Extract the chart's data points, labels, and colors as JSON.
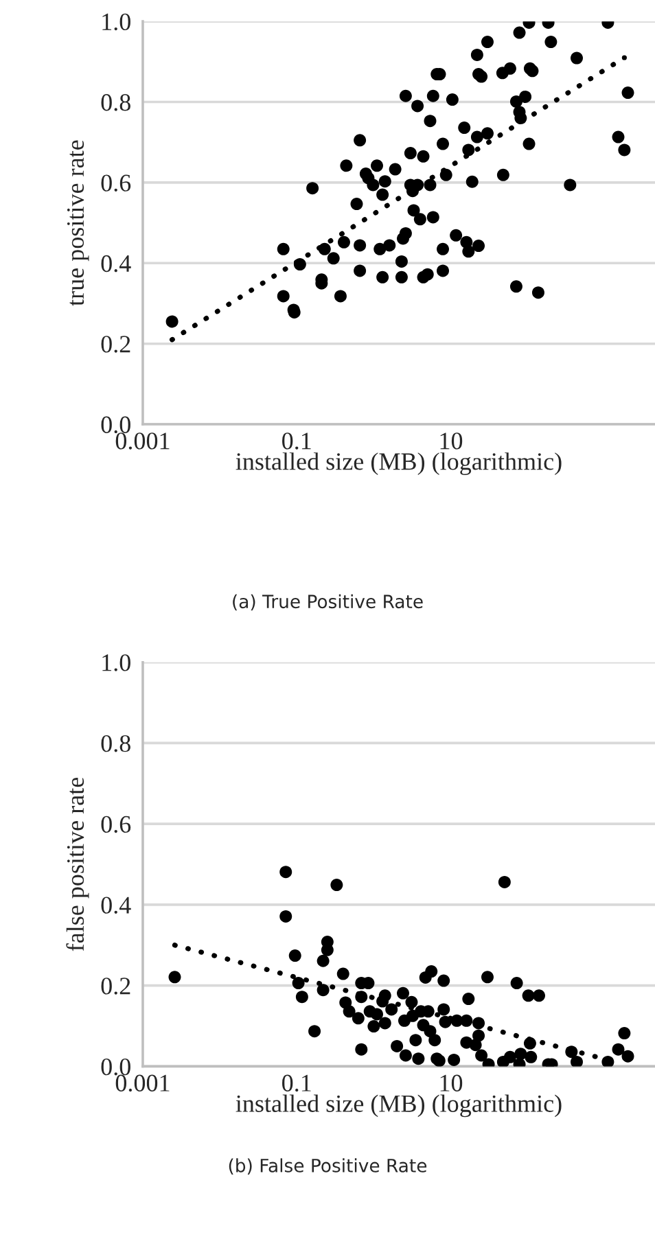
{
  "chart_data": [
    {
      "type": "scatter",
      "xlabel": "installed size (MB) (logarithmic)",
      "ylabel": "true positive rate",
      "annotations": [
        "(a) True Positive Rate"
      ],
      "log": "x",
      "grid": "y",
      "marker": "circle",
      "xlim": [
        0.001,
        4500
      ],
      "xticks": [
        0.001,
        0.1,
        10
      ],
      "ylim": [
        0,
        1
      ],
      "yticks": [
        {
          "value": 0,
          "label": "0.0"
        },
        {
          "value": 0.2,
          "label": "0.2"
        },
        {
          "value": 0.4,
          "label": "0.4"
        },
        {
          "value": 0.6,
          "label": "0.6"
        },
        {
          "value": 0.8,
          "label": "0.8"
        },
        {
          "value": 1,
          "label": "1.0"
        }
      ],
      "series": [
        {
          "color": "#000000",
          "x": [
            0.0024,
            0.067,
            0.067,
            0.091,
            0.093,
            0.11,
            0.16,
            0.23,
            0.21,
            0.21,
            0.3,
            0.37,
            0.41,
            0.44,
            0.6,
            0.66,
            0.66,
            0.66,
            0.79,
            0.85,
            0.98,
            1.1,
            1.2,
            1.3,
            1.3,
            1.4,
            1.6,
            1.9,
            2.3,
            2.3,
            2.4,
            2.6,
            2.6,
            3.0,
            3.0,
            3.2,
            3.7,
            3.7,
            3.3,
            4.0,
            4.4,
            4.4,
            5.0,
            5.4,
            5.4,
            5.9,
            5.9,
            6.6,
            7.2,
            7.9,
            7.9,
            7.9,
            8.7,
            10.5,
            11.7,
            15,
            16,
            17,
            17,
            19,
            22,
            23,
            22,
            23,
            25,
            30,
            30,
            47,
            48,
            59,
            71,
            71,
            78,
            78,
            81,
            93,
            104,
            104,
            107,
            115,
            137,
            185,
            200,
            355,
            433,
            1100,
            1500,
            1800,
            2000
          ],
          "values": [
            0.255,
            0.435,
            0.318,
            0.284,
            0.278,
            0.397,
            0.586,
            0.435,
            0.359,
            0.35,
            0.412,
            0.318,
            0.452,
            0.642,
            0.547,
            0.705,
            0.444,
            0.381,
            0.622,
            0.611,
            0.594,
            0.642,
            0.435,
            0.57,
            0.365,
            0.603,
            0.444,
            0.633,
            0.404,
            0.365,
            0.461,
            0.474,
            0.815,
            0.673,
            0.594,
            0.579,
            0.594,
            0.79,
            0.531,
            0.509,
            0.665,
            0.365,
            0.372,
            0.753,
            0.594,
            0.514,
            0.815,
            0.869,
            0.869,
            0.696,
            0.435,
            0.381,
            0.619,
            0.806,
            0.469,
            0.736,
            0.452,
            0.429,
            0.681,
            0.602,
            0.713,
            0.443,
            0.917,
            0.869,
            0.863,
            0.949,
            0.722,
            0.872,
            0.619,
            0.883,
            0.801,
            0.342,
            0.972,
            0.775,
            0.76,
            0.813,
            0.997,
            0.696,
            0.883,
            0.877,
            0.327,
            0.997,
            0.949,
            0.594,
            0.909,
            0.997,
            0.713,
            0.681,
            0.823
          ]
        },
        {
          "type": "line",
          "color": "#000000",
          "line_style": "dotted",
          "marker": "none",
          "x": [
            0.0024,
            1800
          ],
          "values": [
            0.21,
            0.91
          ]
        }
      ]
    },
    {
      "type": "scatter",
      "xlabel": "installed size (MB) (logarithmic)",
      "ylabel": "false positive rate",
      "annotations": [
        "(b) False Positive Rate"
      ],
      "log": "x",
      "grid": "y",
      "marker": "circle",
      "xlim": [
        0.001,
        4500
      ],
      "xticks": [
        0.001,
        0.1,
        10
      ],
      "ylim": [
        0,
        1
      ],
      "yticks": [
        {
          "value": 0,
          "label": "0.0"
        },
        {
          "value": 0.2,
          "label": "0.2"
        },
        {
          "value": 0.4,
          "label": "0.4"
        },
        {
          "value": 0.6,
          "label": "0.6"
        },
        {
          "value": 0.8,
          "label": "0.8"
        },
        {
          "value": 1,
          "label": "1.0"
        }
      ],
      "series": [
        {
          "color": "#000000",
          "x": [
            0.0026,
            0.072,
            0.072,
            0.095,
            0.105,
            0.117,
            0.17,
            0.22,
            0.22,
            0.25,
            0.25,
            0.33,
            0.4,
            0.43,
            0.48,
            0.63,
            0.69,
            0.69,
            0.69,
            0.85,
            0.89,
            1.0,
            1.1,
            1.3,
            1.4,
            1.4,
            1.7,
            2.0,
            2.4,
            2.5,
            2.6,
            3.1,
            3.2,
            3.5,
            3.8,
            4.1,
            4.4,
            4.7,
            5.1,
            5.4,
            5.6,
            6.2,
            6.6,
            7.1,
            8.1,
            8.1,
            8.5,
            11,
            12,
            16,
            17,
            16,
            21,
            23,
            23,
            25,
            30,
            31,
            48,
            50,
            59,
            72,
            78,
            81,
            102,
            107,
            110,
            140,
            185,
            205,
            370,
            433,
            1100,
            1500,
            1800,
            2000
          ],
          "values": [
            0.221,
            0.481,
            0.371,
            0.274,
            0.206,
            0.172,
            0.087,
            0.261,
            0.189,
            0.308,
            0.288,
            0.449,
            0.229,
            0.158,
            0.136,
            0.119,
            0.206,
            0.172,
            0.042,
            0.206,
            0.136,
            0.099,
            0.129,
            0.161,
            0.175,
            0.107,
            0.141,
            0.05,
            0.181,
            0.113,
            0.027,
            0.159,
            0.125,
            0.065,
            0.019,
            0.136,
            0.102,
            0.22,
            0.136,
            0.087,
            0.235,
            0.065,
            0.019,
            0.014,
            0.212,
            0.141,
            0.11,
            0.016,
            0.113,
            0.113,
            0.167,
            0.059,
            0.053,
            0.107,
            0.076,
            0.027,
            0.221,
            0.005,
            0.011,
            0.456,
            0.023,
            0.206,
            0.005,
            0.031,
            0.175,
            0.057,
            0.023,
            0.175,
            0.005,
            0.005,
            0.036,
            0.011,
            0.011,
            0.042,
            0.082,
            0.025
          ]
        },
        {
          "type": "line",
          "color": "#000000",
          "line_style": "dotted",
          "marker": "none",
          "x": [
            0.0026,
            1100
          ],
          "values": [
            0.3,
            0.016
          ]
        }
      ]
    }
  ]
}
